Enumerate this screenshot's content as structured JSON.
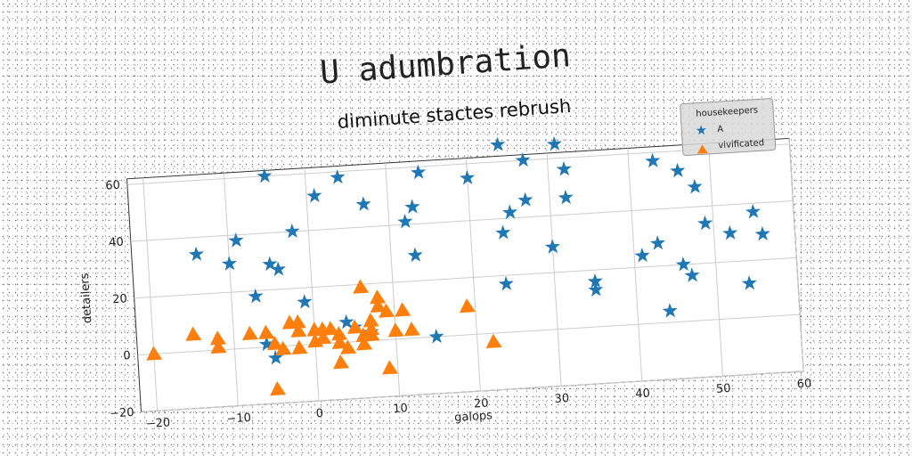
{
  "page": {
    "title": "U adumbration"
  },
  "chart_data": {
    "type": "scatter",
    "title": "diminute stactes rebrush",
    "xlabel": "galops",
    "ylabel": "detailers",
    "xlim": [
      -22,
      60
    ],
    "ylim": [
      -20,
      62
    ],
    "xticks": [
      -20,
      -10,
      0,
      10,
      20,
      30,
      40,
      50,
      60
    ],
    "yticks": [
      -20,
      0,
      20,
      40,
      60
    ],
    "grid": true,
    "legend": {
      "title": "housekeepers",
      "placement": "top-right"
    },
    "series": [
      {
        "name": "A",
        "marker": "star",
        "color": "#1f77b4",
        "points": [
          [
            -14,
            34
          ],
          [
            -9,
            38
          ],
          [
            -10,
            30
          ],
          [
            -7,
            18
          ],
          [
            -5,
            29
          ],
          [
            -4,
            27
          ],
          [
            -5,
            60
          ],
          [
            -2,
            40
          ],
          [
            -1,
            15
          ],
          [
            1,
            52
          ],
          [
            4,
            58
          ],
          [
            7,
            48
          ],
          [
            12,
            41
          ],
          [
            13,
            46
          ],
          [
            14,
            58
          ],
          [
            13,
            29
          ],
          [
            4,
            7
          ],
          [
            5,
            5
          ],
          [
            7,
            3
          ],
          [
            15,
            0
          ],
          [
            20,
            55
          ],
          [
            24,
            66
          ],
          [
            24,
            35
          ],
          [
            25,
            42
          ],
          [
            24,
            17
          ],
          [
            27,
            46
          ],
          [
            27,
            60
          ],
          [
            31,
            65
          ],
          [
            32,
            56
          ],
          [
            32,
            46
          ],
          [
            30,
            29
          ],
          [
            35,
            16
          ],
          [
            35,
            13
          ],
          [
            41,
            24
          ],
          [
            43,
            28
          ],
          [
            44,
            4
          ],
          [
            43,
            57
          ],
          [
            46,
            53
          ],
          [
            48,
            47
          ],
          [
            49,
            34
          ],
          [
            46,
            20
          ],
          [
            47,
            16
          ],
          [
            52,
            30
          ],
          [
            54,
            12
          ],
          [
            55,
            37
          ],
          [
            56,
            29
          ],
          [
            -6,
            1
          ],
          [
            -5,
            -4
          ]
        ]
      },
      {
        "name": "vivificated",
        "marker": "triangle",
        "color": "#ff7f0e",
        "points": [
          [
            -20,
            0
          ],
          [
            -15,
            6
          ],
          [
            -12,
            4
          ],
          [
            -12,
            1
          ],
          [
            -8,
            5
          ],
          [
            -6,
            5
          ],
          [
            -5,
            1
          ],
          [
            -4,
            -1
          ],
          [
            -5,
            -15
          ],
          [
            -3,
            8
          ],
          [
            -2,
            8
          ],
          [
            -2,
            5
          ],
          [
            -2,
            -1
          ],
          [
            0,
            5
          ],
          [
            0,
            1
          ],
          [
            1,
            5
          ],
          [
            1,
            2
          ],
          [
            2,
            5
          ],
          [
            3,
            3
          ],
          [
            3,
            0
          ],
          [
            3,
            -7
          ],
          [
            4,
            -2
          ],
          [
            5,
            5
          ],
          [
            6,
            2
          ],
          [
            6,
            -1
          ],
          [
            7,
            7
          ],
          [
            7,
            4
          ],
          [
            7,
            2
          ],
          [
            8,
            15
          ],
          [
            8,
            12
          ],
          [
            9,
            10
          ],
          [
            9,
            -10
          ],
          [
            10,
            3
          ],
          [
            11,
            10
          ],
          [
            12,
            3
          ],
          [
            6,
            19
          ],
          [
            19,
            10
          ],
          [
            22,
            -3
          ]
        ]
      }
    ]
  }
}
